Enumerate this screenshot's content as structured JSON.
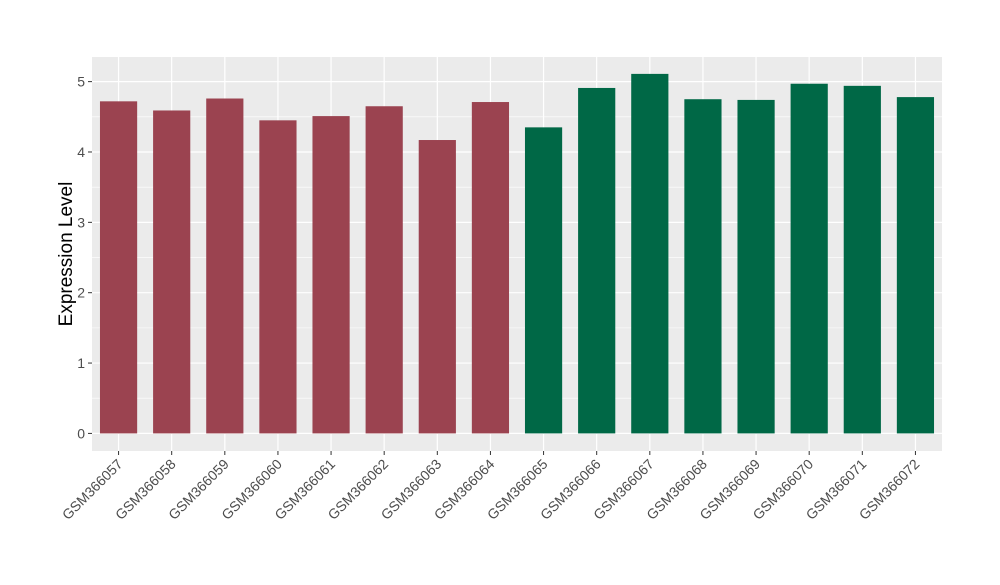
{
  "chart_data": {
    "type": "bar",
    "title": "",
    "xlabel": "",
    "ylabel": "Expression Level",
    "ylim": [
      -0.25,
      5.35
    ],
    "yticks": [
      0,
      1,
      2,
      3,
      4,
      5
    ],
    "grid": true,
    "legend": "none",
    "categories": [
      "GSM366057",
      "GSM366058",
      "GSM366059",
      "GSM366060",
      "GSM366061",
      "GSM366062",
      "GSM366063",
      "GSM366064",
      "GSM366065",
      "GSM366066",
      "GSM366067",
      "GSM366068",
      "GSM366069",
      "GSM366070",
      "GSM366071",
      "GSM366072"
    ],
    "values": [
      4.72,
      4.59,
      4.76,
      4.45,
      4.51,
      4.65,
      4.17,
      4.71,
      4.35,
      4.91,
      5.11,
      4.75,
      4.74,
      4.97,
      4.94,
      4.78
    ],
    "group_of_bar": [
      0,
      0,
      0,
      0,
      0,
      0,
      0,
      0,
      1,
      1,
      1,
      1,
      1,
      1,
      1,
      1
    ],
    "group_colors": [
      "#9b4350",
      "#006846"
    ],
    "panel_background": "#ebebeb",
    "grid_color": "#ffffff"
  }
}
